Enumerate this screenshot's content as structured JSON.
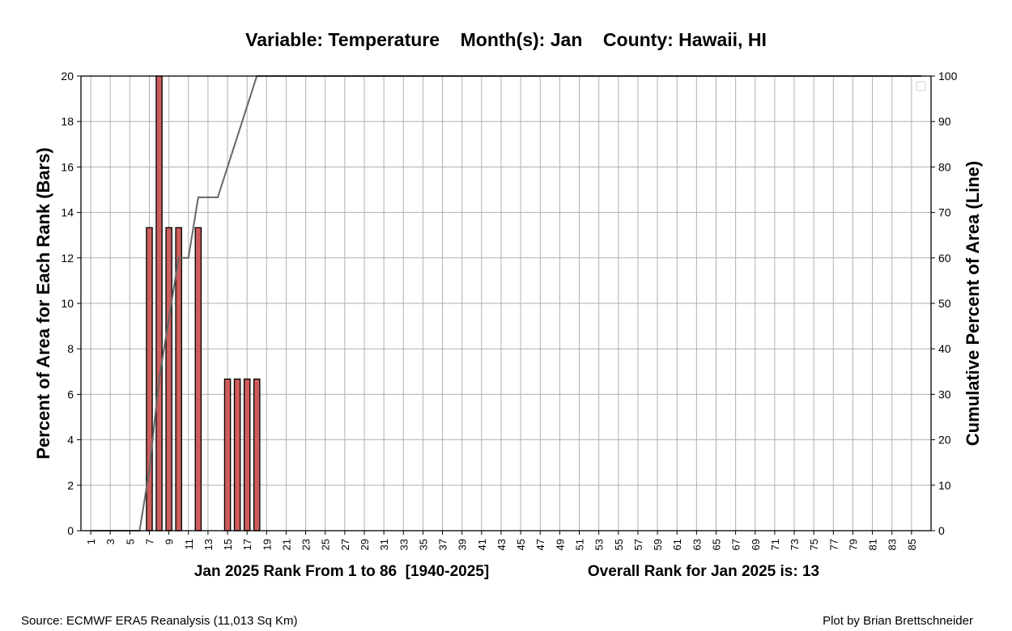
{
  "chart_data": {
    "type": "bar",
    "title": "Variable: Temperature    Month(s): Jan    County: Hawaii, HI",
    "xlabel_left": "Jan 2025 Rank From 1 to 86  [1940-2025]",
    "xlabel_right": "Overall Rank for Jan 2025 is: 13",
    "ylabel": "Percent of Area for Each Rank (Bars)",
    "y2label": "Cumulative Percent of Area (Line)",
    "xlim": [
      0,
      87
    ],
    "ylim": [
      0,
      20
    ],
    "y2lim": [
      0,
      100
    ],
    "yticks": [
      0,
      2,
      4,
      6,
      8,
      10,
      12,
      14,
      16,
      18,
      20
    ],
    "y2ticks": [
      0,
      10,
      20,
      30,
      40,
      50,
      60,
      70,
      80,
      90,
      100
    ],
    "xticks": [
      1,
      3,
      5,
      7,
      9,
      11,
      13,
      15,
      17,
      19,
      21,
      23,
      25,
      27,
      29,
      31,
      33,
      35,
      37,
      39,
      41,
      43,
      45,
      47,
      49,
      51,
      53,
      55,
      57,
      59,
      61,
      63,
      65,
      67,
      69,
      71,
      73,
      75,
      77,
      79,
      81,
      83,
      85
    ],
    "grid": true,
    "legend": "top-right (empty)",
    "bars": [
      {
        "rank": 7,
        "value": 13.33
      },
      {
        "rank": 8,
        "value": 20
      },
      {
        "rank": 9,
        "value": 13.33
      },
      {
        "rank": 10,
        "value": 13.33
      },
      {
        "rank": 12,
        "value": 13.33
      },
      {
        "rank": 15,
        "value": 6.67
      },
      {
        "rank": 16,
        "value": 6.67
      },
      {
        "rank": 17,
        "value": 6.67
      },
      {
        "rank": 18,
        "value": 6.67
      }
    ],
    "bar_color": "#cd5c5c",
    "line_color": "#666666",
    "cumulative": [
      {
        "rank": 1,
        "value": 0
      },
      {
        "rank": 6,
        "value": 0
      },
      {
        "rank": 7,
        "value": 13.33
      },
      {
        "rank": 8,
        "value": 33.33
      },
      {
        "rank": 9,
        "value": 46.67
      },
      {
        "rank": 10,
        "value": 60
      },
      {
        "rank": 11,
        "value": 60
      },
      {
        "rank": 12,
        "value": 73.33
      },
      {
        "rank": 14,
        "value": 73.33
      },
      {
        "rank": 15,
        "value": 80
      },
      {
        "rank": 16,
        "value": 86.67
      },
      {
        "rank": 17,
        "value": 93.33
      },
      {
        "rank": 18,
        "value": 100
      },
      {
        "rank": 86,
        "value": 100
      }
    ]
  },
  "footer": {
    "source": "Source: ECMWF ERA5 Reanalysis (11,013 Sq Km)",
    "credit": "Plot by Brian Brettschneider"
  }
}
